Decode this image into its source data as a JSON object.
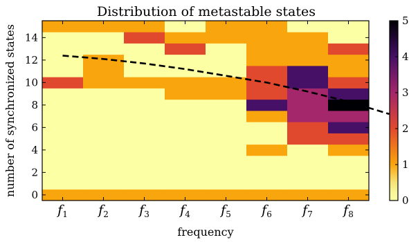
{
  "chart_data": {
    "type": "heatmap",
    "title": "Distribution of metastable states",
    "xlabel": "frequency",
    "ylabel": "number of synchronized states",
    "x_categories": [
      {
        "base": "f",
        "sub": "1"
      },
      {
        "base": "f",
        "sub": "2"
      },
      {
        "base": "f",
        "sub": "3"
      },
      {
        "base": "f",
        "sub": "4"
      },
      {
        "base": "f",
        "sub": "5"
      },
      {
        "base": "f",
        "sub": "6"
      },
      {
        "base": "f",
        "sub": "7"
      },
      {
        "base": "f",
        "sub": "8"
      }
    ],
    "y_values": [
      0,
      1,
      2,
      3,
      4,
      5,
      6,
      7,
      8,
      9,
      10,
      11,
      12,
      13,
      14,
      15
    ],
    "y_ticks": [
      0,
      2,
      4,
      6,
      8,
      10,
      12,
      14
    ],
    "ylim": [
      -0.5,
      15.5
    ],
    "colorbar": {
      "min": 0,
      "max": 5,
      "ticks": [
        0,
        1,
        2,
        3,
        4,
        5
      ],
      "colormap": "inferno_r"
    },
    "values": [
      [
        1,
        1,
        1,
        1,
        1,
        1,
        1,
        1
      ],
      [
        0,
        0,
        0,
        0,
        0,
        0,
        0,
        0
      ],
      [
        0,
        0,
        0,
        0,
        0,
        0,
        0,
        0
      ],
      [
        0,
        0,
        0,
        0,
        0,
        0,
        0,
        0
      ],
      [
        0,
        0,
        0,
        0,
        0,
        1,
        0,
        1
      ],
      [
        0,
        0,
        0,
        0,
        0,
        0,
        2,
        2
      ],
      [
        0,
        0,
        0,
        0,
        0,
        0,
        2,
        4
      ],
      [
        0,
        0,
        0,
        0,
        0,
        1,
        3,
        3
      ],
      [
        0,
        0,
        0,
        0,
        0,
        4,
        3,
        5
      ],
      [
        0,
        0,
        0,
        1,
        1,
        2,
        3,
        4
      ],
      [
        2,
        1,
        1,
        1,
        1,
        2,
        4,
        2
      ],
      [
        0,
        1,
        0,
        0,
        0,
        2,
        4,
        1
      ],
      [
        0,
        1,
        0,
        0,
        0,
        1,
        1,
        1
      ],
      [
        0,
        0,
        0,
        2,
        0,
        1,
        1,
        2
      ],
      [
        0,
        0,
        2,
        1,
        1,
        1,
        1,
        0
      ],
      [
        1,
        1,
        1,
        0,
        1,
        1,
        0,
        0
      ]
    ],
    "trend_line": {
      "style": "dashed",
      "color": "#000000",
      "x": [
        0.5,
        1.5,
        2.5,
        3.5,
        4.5,
        5.5,
        6.5,
        7.5,
        8.5
      ],
      "y": [
        12.4,
        12.1,
        11.7,
        11.2,
        10.6,
        10.0,
        9.2,
        8.3,
        7.2
      ]
    }
  }
}
